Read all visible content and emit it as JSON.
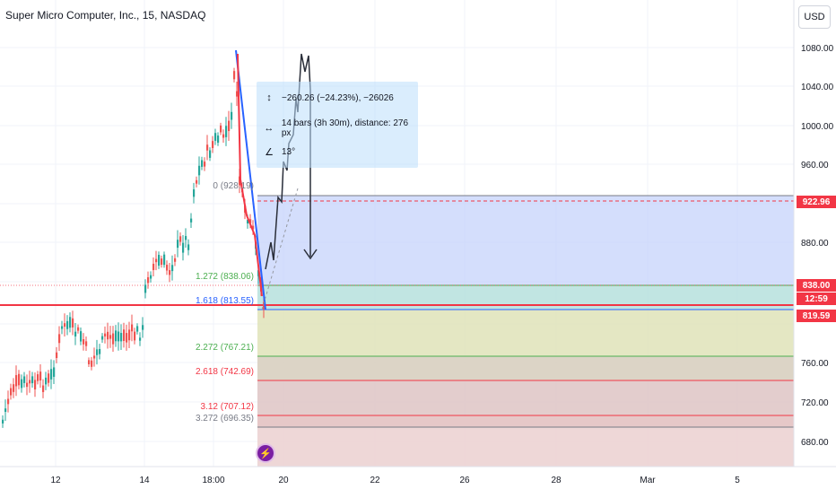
{
  "header": {
    "title": "Super Micro Computer, Inc., 15, NASDAQ",
    "currency": "USD"
  },
  "colors": {
    "up": "#26a69a",
    "down": "#ef5350",
    "accent": "#f23645",
    "grid": "#f0f3fa",
    "zone_blue": "#c5d3fb",
    "zone_teal": "#b2dfdb",
    "zone_olive": "#dfe3b8",
    "zone_rose": "#e8c4c4",
    "event": "#7b1fa2"
  },
  "price_axis": {
    "labels": [
      "1080.00",
      "1040.00",
      "1000.00",
      "960.00",
      "880.00",
      "760.00",
      "720.00",
      "680.00"
    ]
  },
  "time_axis": {
    "labels": [
      "12",
      "14",
      "18:00",
      "20",
      "22",
      "26",
      "28",
      "Mar",
      "5"
    ]
  },
  "price_tags": {
    "p1": "922.96",
    "p2": "838.00",
    "p3": "12:59",
    "p4": "819.59"
  },
  "fib_levels": [
    {
      "ratio": "0",
      "label": "0 (928.19)",
      "color": "#787b86"
    },
    {
      "ratio": "1.272",
      "label": "1.272 (838.06)",
      "color": "#4caf50"
    },
    {
      "ratio": "1.618",
      "label": "1.618 (813.55)",
      "color": "#2962ff"
    },
    {
      "ratio": "2.272",
      "label": "2.272 (767.21)",
      "color": "#4caf50"
    },
    {
      "ratio": "2.618",
      "label": "2.618 (742.69)",
      "color": "#f23645"
    },
    {
      "ratio": "3.12",
      "label": "3.12 (707.12)",
      "color": "#f23645"
    },
    {
      "ratio": "3.272",
      "label": "3.272 (696.35)",
      "color": "#787b86"
    }
  ],
  "measure": {
    "price_change": "−260.26 (−24.23%), −26026",
    "bars": "14 bars (3h 30m), distance: 276 px",
    "angle": "13°"
  },
  "icons": {
    "measure_price": "arrow-vertical-icon",
    "measure_bars": "arrow-horizontal-icon",
    "measure_angle": "angle-icon",
    "event": "lightning-icon"
  }
}
